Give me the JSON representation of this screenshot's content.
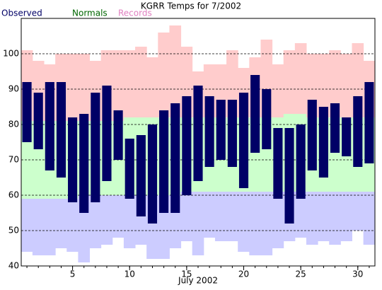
{
  "chart_data": {
    "type": "range-bar",
    "title": "KGRR Temps for 7/2002",
    "xlabel": "July 2002",
    "x": [
      1,
      2,
      3,
      4,
      5,
      6,
      7,
      8,
      9,
      10,
      11,
      12,
      13,
      14,
      15,
      16,
      17,
      18,
      19,
      20,
      21,
      22,
      23,
      24,
      25,
      26,
      27,
      28,
      29,
      30,
      31
    ],
    "xlim": [
      0.5,
      31.5
    ],
    "xticks": [
      5,
      10,
      15,
      20,
      25,
      30
    ],
    "ylim": [
      40,
      110
    ],
    "yticks": [
      40,
      50,
      60,
      70,
      80,
      90,
      100
    ],
    "grid": true,
    "series": [
      {
        "name": "Observed",
        "color": "#000066",
        "high": [
          92,
          89,
          92,
          92,
          82,
          83,
          89,
          91,
          84,
          76,
          77,
          80,
          84,
          86,
          88,
          91,
          88,
          87,
          87,
          89,
          94,
          90,
          79,
          79,
          80,
          87,
          85,
          86,
          82,
          88,
          92
        ],
        "low": [
          75,
          73,
          67,
          65,
          58,
          55,
          58,
          64,
          70,
          59,
          54,
          52,
          55,
          55,
          60,
          64,
          68,
          70,
          68,
          62,
          72,
          73,
          59,
          52,
          59,
          67,
          65,
          72,
          71,
          68,
          69
        ]
      },
      {
        "name": "Normals",
        "color": "#006600",
        "fill": "#ccffcc",
        "high": [
          81,
          81,
          81,
          81,
          81,
          81,
          81,
          81,
          81,
          82,
          82,
          82,
          82,
          82,
          82,
          82,
          82,
          82,
          82,
          82,
          82,
          82,
          82,
          83,
          83,
          82,
          82,
          82,
          82,
          82,
          82
        ],
        "low": [
          59,
          59,
          59,
          59,
          59,
          60,
          60,
          60,
          60,
          60,
          60,
          60,
          60,
          60,
          61,
          61,
          61,
          61,
          61,
          61,
          61,
          61,
          61,
          61,
          61,
          61,
          61,
          61,
          61,
          61,
          61
        ]
      },
      {
        "name": "Records",
        "color": "#e080c0",
        "fill_high": "#ffcccc",
        "fill_low": "#ccccff",
        "high": [
          101,
          98,
          97,
          100,
          100,
          100,
          98,
          101,
          101,
          101,
          102,
          99,
          106,
          108,
          102,
          95,
          97,
          97,
          101,
          96,
          99,
          104,
          97,
          101,
          103,
          100,
          100,
          101,
          100,
          103,
          98
        ],
        "low": [
          44,
          43,
          43,
          45,
          44,
          41,
          45,
          46,
          48,
          45,
          46,
          42,
          42,
          45,
          47,
          43,
          48,
          47,
          47,
          44,
          43,
          43,
          45,
          47,
          48,
          46,
          47,
          46,
          47,
          50,
          46
        ]
      }
    ]
  }
}
